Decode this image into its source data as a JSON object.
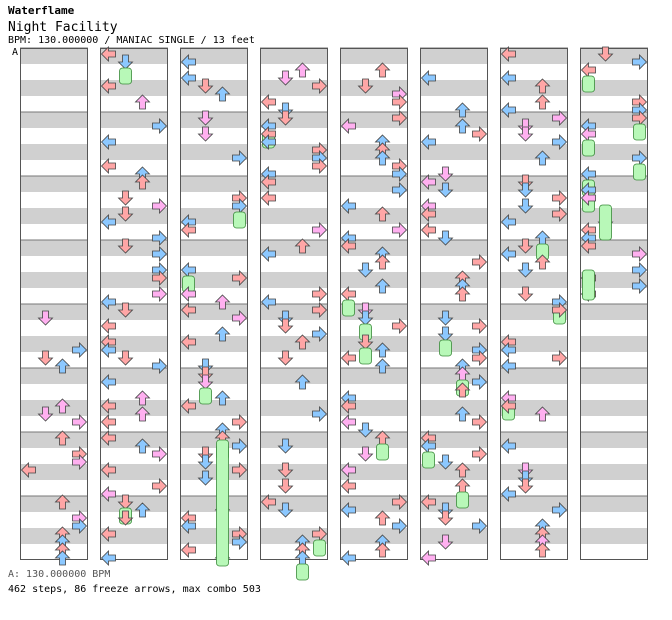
{
  "header": {
    "artist": "Waterflame",
    "title": "Night Facility",
    "meta": "BPM: 130.000000 / MANIAC SINGLE / 13 feet",
    "bpm_marker": "A"
  },
  "footer": {
    "bpm_line": "A: 130.000000 BPM",
    "stats_line": "462 steps, 86 freeze arrows, max combo 503"
  },
  "colors": {
    "stripe": "#d0d0d0",
    "border": "#555555",
    "red": "#ffa6a6",
    "blue": "#8cc8ff",
    "pink": "#ffb0f0",
    "green": "#b0f0b0",
    "freeze": "#b8f8b8"
  },
  "icons": [
    "left-arrow-icon",
    "down-arrow-icon",
    "up-arrow-icon",
    "right-arrow-icon",
    "freeze-arrow-icon"
  ],
  "chart_data": {
    "type": "step-chart",
    "mode": "MANIAC SINGLE",
    "difficulty_feet": 13,
    "bpm": 130.0,
    "columns": 8,
    "measures_per_column": 8,
    "lanes": [
      "left",
      "down",
      "up",
      "right"
    ],
    "total_steps": 462,
    "freeze_arrows": 86,
    "max_combo": 503
  }
}
